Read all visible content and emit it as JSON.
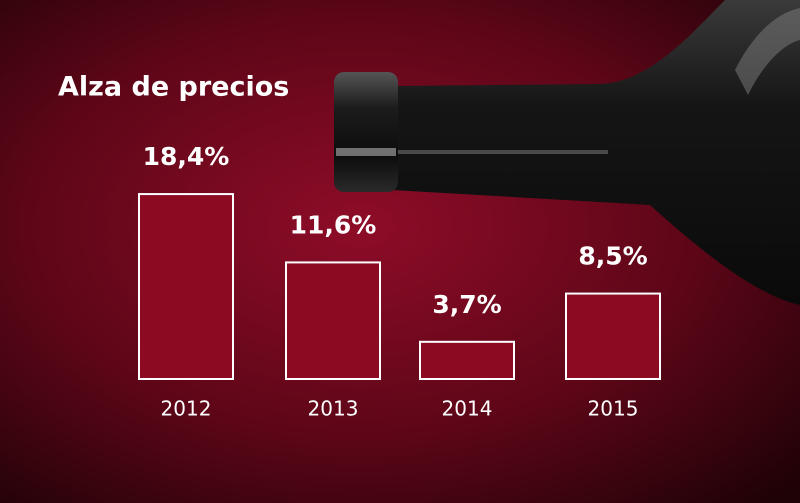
{
  "chart_data": {
    "type": "bar",
    "title": "Alza de precios",
    "categories": [
      "2012",
      "2013",
      "2014",
      "2015"
    ],
    "values": [
      18.4,
      11.6,
      3.7,
      8.5
    ],
    "value_labels": [
      "18,4%",
      "11,6%",
      "3,7%",
      "8,5%"
    ],
    "color": "#8c0a22"
  }
}
